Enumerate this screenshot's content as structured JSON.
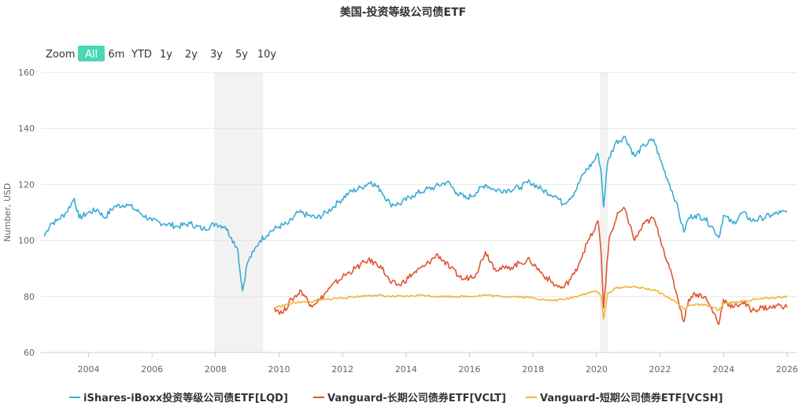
{
  "range_selector": {
    "zoom_label": "Zoom",
    "buttons": [
      "All",
      "6m",
      "YTD",
      "1y",
      "2y",
      "3y",
      "5y",
      "10y"
    ],
    "active": "All",
    "active_color": "#4bd6b8"
  },
  "chart_data": {
    "type": "line",
    "title": "美国-投资等级公司债ETF",
    "xlabel": "",
    "ylabel": "Number, USD",
    "xlim": [
      2002.5,
      2026.3
    ],
    "ylim": [
      60,
      160
    ],
    "yticks": [
      60,
      80,
      100,
      120,
      140,
      160
    ],
    "xticks": [
      2004,
      2006,
      2008,
      2010,
      2012,
      2014,
      2016,
      2018,
      2020,
      2022,
      2024,
      2026
    ],
    "grid": true,
    "legend_position": "bottom",
    "recession_bands": [
      [
        2007.95,
        2009.5
      ],
      [
        2020.1,
        2020.35
      ]
    ],
    "band_color": "#f2f2f2",
    "series": [
      {
        "name": "iShares-iBoxx投资等级公司债ETF[LQD]",
        "color": "#3aabd6",
        "points": [
          [
            2002.6,
            101.5
          ],
          [
            2002.8,
            106
          ],
          [
            2003.0,
            107
          ],
          [
            2003.3,
            110
          ],
          [
            2003.55,
            115
          ],
          [
            2003.7,
            108
          ],
          [
            2004.0,
            110
          ],
          [
            2004.3,
            111
          ],
          [
            2004.5,
            108
          ],
          [
            2004.8,
            112
          ],
          [
            2005.2,
            113
          ],
          [
            2005.6,
            110
          ],
          [
            2006.0,
            107
          ],
          [
            2006.4,
            106
          ],
          [
            2006.8,
            105
          ],
          [
            2007.2,
            106
          ],
          [
            2007.6,
            104
          ],
          [
            2008.0,
            106
          ],
          [
            2008.3,
            105
          ],
          [
            2008.5,
            101
          ],
          [
            2008.7,
            97
          ],
          [
            2008.78,
            88
          ],
          [
            2008.85,
            82
          ],
          [
            2009.0,
            92
          ],
          [
            2009.2,
            96
          ],
          [
            2009.4,
            100
          ],
          [
            2009.7,
            103
          ],
          [
            2010.0,
            105
          ],
          [
            2010.3,
            106
          ],
          [
            2010.6,
            110
          ],
          [
            2010.9,
            109
          ],
          [
            2011.2,
            108
          ],
          [
            2011.5,
            110
          ],
          [
            2011.9,
            114
          ],
          [
            2012.2,
            117
          ],
          [
            2012.6,
            119
          ],
          [
            2012.9,
            121
          ],
          [
            2013.2,
            118
          ],
          [
            2013.5,
            113
          ],
          [
            2013.8,
            113
          ],
          [
            2014.2,
            116
          ],
          [
            2014.6,
            118
          ],
          [
            2014.9,
            119
          ],
          [
            2015.3,
            121
          ],
          [
            2015.6,
            117
          ],
          [
            2015.9,
            115
          ],
          [
            2016.2,
            117
          ],
          [
            2016.5,
            120
          ],
          [
            2016.8,
            118
          ],
          [
            2017.2,
            118
          ],
          [
            2017.6,
            119
          ],
          [
            2017.9,
            121
          ],
          [
            2018.3,
            118
          ],
          [
            2018.7,
            116
          ],
          [
            2018.95,
            113
          ],
          [
            2019.3,
            117
          ],
          [
            2019.6,
            124
          ],
          [
            2019.9,
            128
          ],
          [
            2020.05,
            131
          ],
          [
            2020.15,
            124
          ],
          [
            2020.22,
            112
          ],
          [
            2020.35,
            128
          ],
          [
            2020.6,
            135
          ],
          [
            2020.9,
            137
          ],
          [
            2021.2,
            130
          ],
          [
            2021.5,
            134
          ],
          [
            2021.8,
            136
          ],
          [
            2022.0,
            129
          ],
          [
            2022.3,
            120
          ],
          [
            2022.5,
            114
          ],
          [
            2022.75,
            103
          ],
          [
            2022.9,
            108
          ],
          [
            2023.1,
            109
          ],
          [
            2023.4,
            108
          ],
          [
            2023.7,
            104
          ],
          [
            2023.85,
            101
          ],
          [
            2024.0,
            109
          ],
          [
            2024.3,
            106
          ],
          [
            2024.6,
            110
          ],
          [
            2024.9,
            107
          ],
          [
            2025.2,
            108
          ],
          [
            2025.5,
            109
          ],
          [
            2025.8,
            110
          ],
          [
            2026.0,
            110
          ]
        ]
      },
      {
        "name": "Vanguard-长期公司债券ETF[VCLT]",
        "color": "#e15530",
        "points": [
          [
            2009.85,
            76
          ],
          [
            2010.1,
            74
          ],
          [
            2010.4,
            79
          ],
          [
            2010.7,
            82
          ],
          [
            2011.0,
            77
          ],
          [
            2011.3,
            79
          ],
          [
            2011.6,
            83
          ],
          [
            2012.0,
            87
          ],
          [
            2012.4,
            90
          ],
          [
            2012.8,
            93
          ],
          [
            2013.2,
            91
          ],
          [
            2013.5,
            85
          ],
          [
            2013.8,
            84
          ],
          [
            2014.2,
            88
          ],
          [
            2014.6,
            91
          ],
          [
            2015.0,
            95
          ],
          [
            2015.4,
            90
          ],
          [
            2015.8,
            86
          ],
          [
            2016.2,
            88
          ],
          [
            2016.5,
            96
          ],
          [
            2016.8,
            90
          ],
          [
            2017.2,
            90
          ],
          [
            2017.6,
            92
          ],
          [
            2017.9,
            93
          ],
          [
            2018.3,
            88
          ],
          [
            2018.7,
            84
          ],
          [
            2018.95,
            83
          ],
          [
            2019.3,
            88
          ],
          [
            2019.7,
            99
          ],
          [
            2019.9,
            103
          ],
          [
            2020.05,
            107
          ],
          [
            2020.15,
            95
          ],
          [
            2020.22,
            76
          ],
          [
            2020.4,
            101
          ],
          [
            2020.7,
            110
          ],
          [
            2020.9,
            111
          ],
          [
            2021.2,
            100
          ],
          [
            2021.5,
            106
          ],
          [
            2021.8,
            108
          ],
          [
            2022.0,
            101
          ],
          [
            2022.3,
            90
          ],
          [
            2022.5,
            82
          ],
          [
            2022.75,
            71
          ],
          [
            2022.9,
            79
          ],
          [
            2023.1,
            81
          ],
          [
            2023.4,
            80
          ],
          [
            2023.7,
            74
          ],
          [
            2023.85,
            70
          ],
          [
            2024.0,
            79
          ],
          [
            2024.3,
            76
          ],
          [
            2024.6,
            78
          ],
          [
            2024.9,
            75
          ],
          [
            2025.2,
            76
          ],
          [
            2025.5,
            76
          ],
          [
            2025.8,
            77
          ],
          [
            2026.0,
            76
          ]
        ]
      },
      {
        "name": "Vanguard-短期公司债券ETF[VCSH]",
        "color": "#f2b337",
        "points": [
          [
            2009.85,
            76
          ],
          [
            2010.2,
            77
          ],
          [
            2010.6,
            78
          ],
          [
            2011.0,
            78
          ],
          [
            2011.5,
            79
          ],
          [
            2012.0,
            79.5
          ],
          [
            2012.5,
            80
          ],
          [
            2013.0,
            80.5
          ],
          [
            2013.5,
            80
          ],
          [
            2014.0,
            80
          ],
          [
            2014.5,
            80.5
          ],
          [
            2015.0,
            80
          ],
          [
            2015.5,
            80
          ],
          [
            2016.0,
            80
          ],
          [
            2016.5,
            80.5
          ],
          [
            2017.0,
            80
          ],
          [
            2017.5,
            80
          ],
          [
            2018.0,
            79.5
          ],
          [
            2018.5,
            78.5
          ],
          [
            2019.0,
            79
          ],
          [
            2019.5,
            80.5
          ],
          [
            2020.0,
            82
          ],
          [
            2020.15,
            80
          ],
          [
            2020.22,
            72
          ],
          [
            2020.35,
            81
          ],
          [
            2020.6,
            83
          ],
          [
            2021.0,
            83.5
          ],
          [
            2021.5,
            83
          ],
          [
            2021.9,
            82
          ],
          [
            2022.2,
            80
          ],
          [
            2022.5,
            78
          ],
          [
            2022.75,
            75.5
          ],
          [
            2023.0,
            77
          ],
          [
            2023.4,
            77
          ],
          [
            2023.7,
            76
          ],
          [
            2023.85,
            75
          ],
          [
            2024.0,
            77.5
          ],
          [
            2024.5,
            78
          ],
          [
            2025.0,
            79
          ],
          [
            2025.5,
            79.5
          ],
          [
            2026.0,
            80
          ]
        ]
      }
    ]
  }
}
